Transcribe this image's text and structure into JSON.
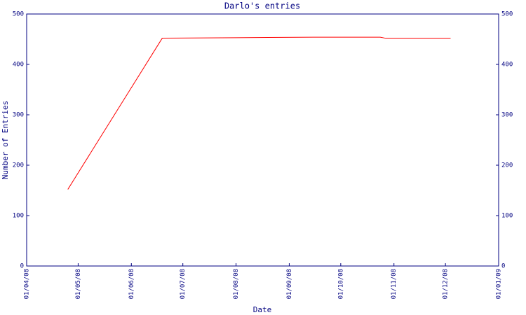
{
  "chart_data": {
    "type": "line",
    "title": "Darlo's entries",
    "x_label": "Date",
    "y_label": "Number of Entries",
    "x": [
      "2008-04-25",
      "2008-06-19",
      "2008-08-01",
      "2008-09-15",
      "2008-10-24",
      "2008-10-27",
      "2008-12-04"
    ],
    "series": [
      {
        "color": "#ff0000",
        "values": [
          152,
          452,
          453,
          454,
          454,
          452,
          452
        ]
      }
    ],
    "xlim": [
      "2008-04-01",
      "2009-01-01"
    ],
    "xticks": [
      {
        "value": "2008-04-01",
        "label": "01/04/08"
      },
      {
        "value": "2008-05-01",
        "label": "01/05/08"
      },
      {
        "value": "2008-06-01",
        "label": "01/06/08"
      },
      {
        "value": "2008-07-01",
        "label": "01/07/08"
      },
      {
        "value": "2008-08-01",
        "label": "01/08/08"
      },
      {
        "value": "2008-09-01",
        "label": "01/09/08"
      },
      {
        "value": "2008-10-01",
        "label": "01/10/08"
      },
      {
        "value": "2008-11-01",
        "label": "01/11/08"
      },
      {
        "value": "2008-12-01",
        "label": "01/12/08"
      },
      {
        "value": "2009-01-01",
        "label": "01/01/09"
      }
    ],
    "ylim": [
      0,
      500
    ],
    "yticks": [
      0,
      100,
      200,
      300,
      400,
      500
    ],
    "y2lim": [
      0,
      500
    ],
    "y2ticks": [
      0,
      100,
      200,
      300,
      400,
      500
    ],
    "axis_color": "#000080"
  }
}
